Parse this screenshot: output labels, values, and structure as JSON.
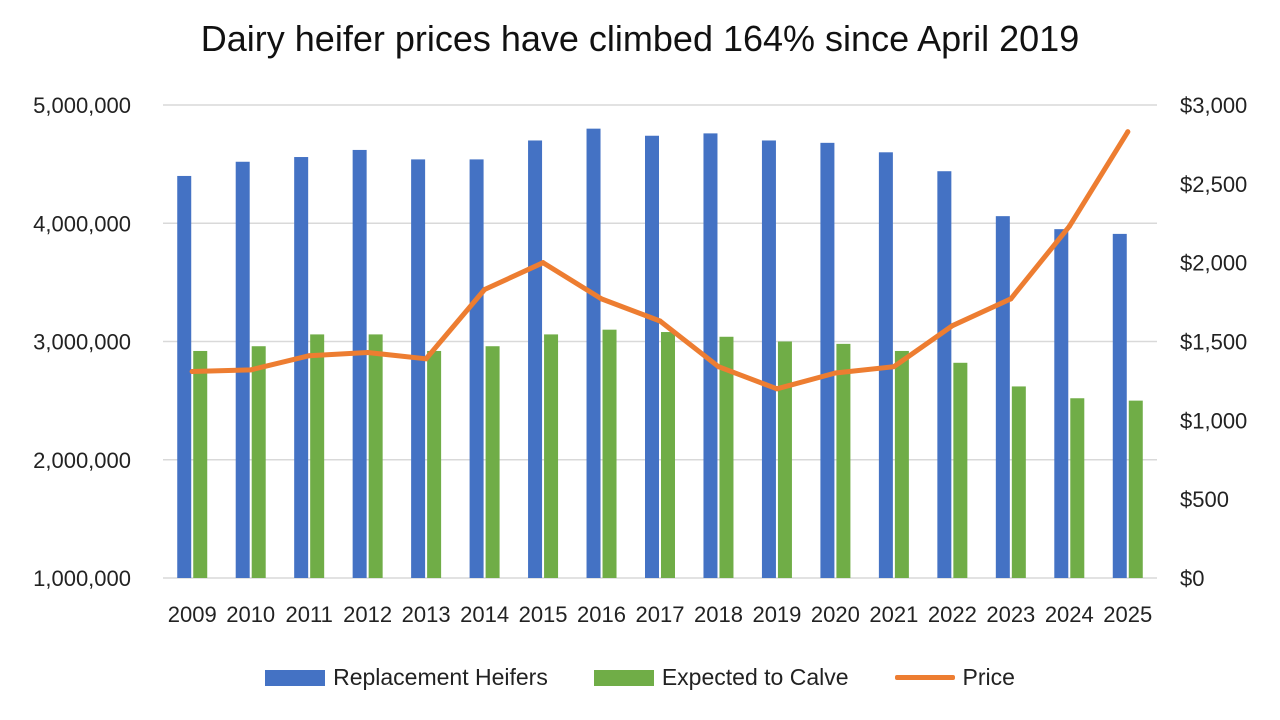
{
  "chart_data": {
    "type": "bar",
    "title": "Dairy heifer prices have climbed  164% since April 2019",
    "categories": [
      "2009",
      "2010",
      "2011",
      "2012",
      "2013",
      "2014",
      "2015",
      "2016",
      "2017",
      "2018",
      "2019",
      "2020",
      "2021",
      "2022",
      "2023",
      "2024",
      "2025"
    ],
    "series": [
      {
        "name": "Replacement Heifers",
        "type": "bar",
        "axis": "left",
        "color": "#4472C4",
        "values": [
          4400000,
          4520000,
          4560000,
          4620000,
          4540000,
          4540000,
          4700000,
          4800000,
          4740000,
          4760000,
          4700000,
          4680000,
          4600000,
          4440000,
          4060000,
          3950000,
          3910000
        ]
      },
      {
        "name": "Expected to Calve",
        "type": "bar",
        "axis": "left",
        "color": "#70AD47",
        "values": [
          2920000,
          2960000,
          3060000,
          3060000,
          2920000,
          2960000,
          3060000,
          3100000,
          3080000,
          3040000,
          3000000,
          2980000,
          2920000,
          2820000,
          2620000,
          2520000,
          2500000
        ]
      },
      {
        "name": "Price",
        "type": "line",
        "axis": "right",
        "color": "#ED7D31",
        "values": [
          1310,
          1320,
          1410,
          1430,
          1390,
          1830,
          2000,
          1770,
          1630,
          1340,
          1200,
          1300,
          1340,
          1600,
          1770,
          2230,
          2830
        ]
      }
    ],
    "y_left": {
      "min": 1000000,
      "max": 5000000,
      "ticks": [
        "1,000,000",
        "2,000,000",
        "3,000,000",
        "4,000,000",
        "5,000,000"
      ]
    },
    "y_right": {
      "min": 0,
      "max": 3000,
      "ticks": [
        "$0",
        "$500",
        "$1,000",
        "$1,500",
        "$2,000",
        "$2,500",
        "$3,000"
      ]
    },
    "grid": true,
    "legend_position": "bottom"
  }
}
